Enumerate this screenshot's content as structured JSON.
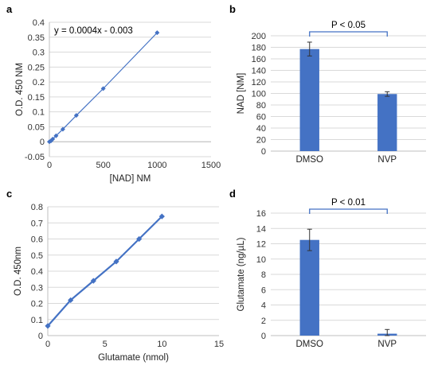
{
  "chart_data": [
    {
      "panel": "a",
      "type": "scatter",
      "title": "",
      "xlabel": "[NAD] NM",
      "ylabel": "O.D. 450 NM",
      "annotation": "y = 0.0004x - 0.003",
      "xlim": [
        0,
        1500
      ],
      "ylim": [
        -0.05,
        0.4
      ],
      "xticks": [
        "0",
        "500",
        "1000",
        "1500"
      ],
      "yticks": [
        "-0.05",
        "0",
        "0.05",
        "0.1",
        "0.15",
        "0.2",
        "0.25",
        "0.3",
        "0.35",
        "0.4"
      ],
      "grid": true,
      "color": "#4472c4",
      "series": [
        {
          "x": [
            0,
            15,
            31,
            62,
            125,
            250,
            500,
            1000
          ],
          "y": [
            0.0,
            0.003,
            0.009,
            0.02,
            0.042,
            0.088,
            0.178,
            0.365
          ]
        }
      ]
    },
    {
      "panel": "b",
      "type": "bar",
      "title": "",
      "xlabel": "",
      "ylabel": "NAD [NM]",
      "categories": [
        "DMSO",
        "NVP"
      ],
      "values": [
        177,
        99
      ],
      "errors": [
        12,
        4
      ],
      "ylim": [
        0,
        200
      ],
      "yticks": [
        "0",
        "20",
        "40",
        "60",
        "80",
        "100",
        "120",
        "140",
        "160",
        "180",
        "200"
      ],
      "annotation": "P < 0.05",
      "grid": true,
      "color": "#4472c4"
    },
    {
      "panel": "c",
      "type": "line",
      "title": "",
      "xlabel": "Glutamate (nmol)",
      "ylabel": "O.D. 450nm",
      "xlim": [
        0,
        15
      ],
      "ylim": [
        0,
        0.8
      ],
      "xticks": [
        "0",
        "5",
        "10",
        "15"
      ],
      "yticks": [
        "0",
        "0.1",
        "0.2",
        "0.3",
        "0.4",
        "0.5",
        "0.6",
        "0.7",
        "0.8"
      ],
      "grid": true,
      "color": "#4472c4",
      "series": [
        {
          "x": [
            0,
            2,
            4,
            6,
            8,
            10
          ],
          "y": [
            0.06,
            0.22,
            0.34,
            0.46,
            0.6,
            0.74
          ]
        }
      ]
    },
    {
      "panel": "d",
      "type": "bar",
      "title": "",
      "xlabel": "",
      "ylabel": "Glutamate (ng/µL)",
      "categories": [
        "DMSO",
        "NVP"
      ],
      "values": [
        12.5,
        0.25
      ],
      "errors": [
        1.4,
        0.55
      ],
      "ylim": [
        0,
        16
      ],
      "yticks": [
        "0",
        "2",
        "4",
        "6",
        "8",
        "10",
        "12",
        "14",
        "16"
      ],
      "annotation": "P < 0.01",
      "grid": true,
      "color": "#4472c4"
    }
  ]
}
